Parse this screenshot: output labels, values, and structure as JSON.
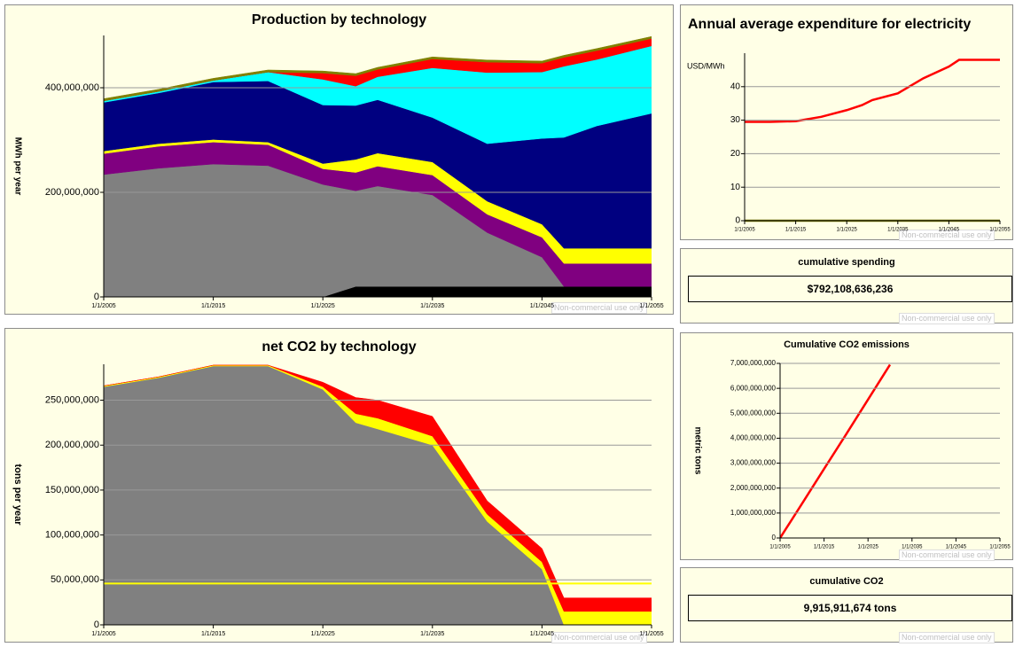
{
  "chart_data": [
    {
      "type": "area",
      "stacked": true,
      "title": "Production by technology",
      "y_label": "MWh per year",
      "x": [
        "2005-01-01",
        "2010-01-01",
        "2015-01-01",
        "2020-01-01",
        "2025-01-01",
        "2028-01-01",
        "2030-01-01",
        "2035-01-01",
        "2040-01-01",
        "2045-01-01",
        "2047-01-01",
        "2050-01-01",
        "2055-01-01"
      ],
      "xlim": [
        "2005-01-01",
        "2055-01-01"
      ],
      "xticks": [
        {
          "value": "2005-01-01",
          "label": "1/1/2005"
        },
        {
          "value": "2015-01-01",
          "label": "1/1/2015"
        },
        {
          "value": "2025-01-01",
          "label": "1/1/2025"
        },
        {
          "value": "2035-01-01",
          "label": "1/1/2035"
        },
        {
          "value": "2045-01-01",
          "label": "1/1/2045"
        },
        {
          "value": "2055-01-01",
          "label": "1/1/2055"
        }
      ],
      "ylim": [
        0,
        500000000
      ],
      "yticks": [
        0,
        {
          "value": 200000000,
          "label": "200,000,000"
        },
        {
          "value": 400000000,
          "label": "400,000,000"
        }
      ],
      "grid": true,
      "series": [
        {
          "color": "#000000",
          "values": [
            0,
            0,
            0,
            0,
            0,
            20000000,
            20000000,
            20000000,
            20000000,
            20000000,
            20000000,
            20000000,
            20000000
          ]
        },
        {
          "color": "#808080",
          "values": [
            234000000,
            246000000,
            254000000,
            251000000,
            215000000,
            183000000,
            192000000,
            175000000,
            103000000,
            56000000,
            0,
            0,
            0
          ]
        },
        {
          "color": "#800080",
          "values": [
            40000000,
            42000000,
            42000000,
            40000000,
            30000000,
            35000000,
            38000000,
            38000000,
            35000000,
            38000000,
            44000000,
            44000000,
            44000000
          ]
        },
        {
          "color": "#ffff00",
          "values": [
            5000000,
            5000000,
            5000000,
            5000000,
            10000000,
            25000000,
            25000000,
            25000000,
            25000000,
            25000000,
            29000000,
            29000000,
            29000000
          ]
        },
        {
          "color": "#000080",
          "values": [
            93000000,
            97000000,
            110000000,
            117000000,
            112000000,
            103000000,
            102000000,
            85000000,
            110000000,
            164000000,
            212000000,
            234000000,
            258000000
          ]
        },
        {
          "color": "#00ffff",
          "values": [
            3000000,
            3000000,
            3000000,
            17000000,
            49000000,
            37000000,
            44000000,
            95000000,
            136000000,
            127000000,
            136000000,
            127000000,
            129000000
          ]
        },
        {
          "color": "#ff0000",
          "values": [
            0,
            0,
            0,
            0,
            12000000,
            20000000,
            14000000,
            17000000,
            20000000,
            17000000,
            17000000,
            17000000,
            14000000
          ]
        },
        {
          "color": "#808000",
          "values": [
            4000000,
            4000000,
            4000000,
            4000000,
            4000000,
            4000000,
            4000000,
            4000000,
            4000000,
            4000000,
            4000000,
            4000000,
            4000000
          ]
        }
      ]
    },
    {
      "type": "area",
      "stacked": true,
      "title": "net CO2 by technology",
      "y_label": "tons per year",
      "x": [
        "2005-01-01",
        "2010-01-01",
        "2015-01-01",
        "2020-01-01",
        "2025-01-01",
        "2028-01-01",
        "2030-01-01",
        "2035-01-01",
        "2040-01-01",
        "2045-01-01",
        "2047-01-01",
        "2050-01-01",
        "2055-01-01"
      ],
      "xlim": [
        "2005-01-01",
        "2055-01-01"
      ],
      "xticks": [
        {
          "value": "2005-01-01",
          "label": "1/1/2005"
        },
        {
          "value": "2015-01-01",
          "label": "1/1/2015"
        },
        {
          "value": "2025-01-01",
          "label": "1/1/2025"
        },
        {
          "value": "2035-01-01",
          "label": "1/1/2035"
        },
        {
          "value": "2045-01-01",
          "label": "1/1/2045"
        },
        {
          "value": "2055-01-01",
          "label": "1/1/2055"
        }
      ],
      "ylim": [
        0,
        290000000
      ],
      "yticks": [
        0,
        {
          "value": 50000000,
          "label": "50,000,000"
        },
        {
          "value": 100000000,
          "label": "100,000,000"
        },
        {
          "value": 150000000,
          "label": "150,000,000"
        },
        {
          "value": 200000000,
          "label": "200,000,000"
        },
        {
          "value": 250000000,
          "label": "250,000,000"
        }
      ],
      "grid": true,
      "hline": 46000000,
      "hline_color": "#ffff00",
      "series": [
        {
          "color": "#808080",
          "values": [
            265000000,
            275000000,
            288000000,
            288000000,
            262000000,
            225000000,
            218000000,
            200000000,
            115000000,
            62000000,
            0,
            0,
            0
          ]
        },
        {
          "color": "#ffff00",
          "values": [
            1000000,
            1000000,
            1000000,
            1000000,
            3000000,
            10000000,
            12000000,
            10000000,
            8000000,
            8000000,
            15000000,
            15000000,
            15000000
          ]
        },
        {
          "color": "#ff0000",
          "values": [
            0,
            0,
            0,
            0,
            5000000,
            18000000,
            20000000,
            22000000,
            15000000,
            15000000,
            15000000,
            15000000,
            15000000
          ]
        }
      ]
    },
    {
      "type": "line",
      "title": "Annual average expenditure for electricity",
      "y_label": "USD/MWh",
      "x": [
        "2005-01-01",
        "2010-01-01",
        "2015-01-01",
        "2020-01-01",
        "2025-01-01",
        "2028-01-01",
        "2030-01-01",
        "2035-01-01",
        "2040-01-01",
        "2045-01-01",
        "2047-01-01",
        "2050-01-01",
        "2055-01-01"
      ],
      "xlim": [
        "2005-01-01",
        "2055-01-01"
      ],
      "xticks": [
        {
          "value": "2005-01-01",
          "label": "1/1/2005"
        },
        {
          "value": "2015-01-01",
          "label": "1/1/2015"
        },
        {
          "value": "2025-01-01",
          "label": "1/1/2025"
        },
        {
          "value": "2035-01-01",
          "label": "1/1/2035"
        },
        {
          "value": "2045-01-01",
          "label": "1/1/2045"
        },
        {
          "value": "2055-01-01",
          "label": "1/1/2055"
        }
      ],
      "ylim": [
        0,
        50
      ],
      "yticks": [
        0,
        10,
        20,
        30,
        40
      ],
      "grid": true,
      "series": [
        {
          "color": "#ff0000",
          "values": [
            29.5,
            29.5,
            29.7,
            31,
            33,
            34.5,
            36,
            38,
            42.5,
            46,
            48,
            48,
            48
          ]
        },
        {
          "color": "#808000",
          "values": [
            0,
            0,
            0,
            0,
            0,
            0,
            0,
            0,
            0,
            0,
            0,
            0,
            0
          ]
        }
      ]
    },
    {
      "type": "line",
      "title": "Cumulative CO2 emissions",
      "y_label": "metric tons",
      "x": [
        "2005-01-01",
        "2010-01-01",
        "2015-01-01",
        "2020-01-01",
        "2025-01-01",
        "2030-01-01"
      ],
      "xlim": [
        "2005-01-01",
        "2055-01-01"
      ],
      "xticks": [
        {
          "value": "2005-01-01",
          "label": "1/1/2005"
        },
        {
          "value": "2015-01-01",
          "label": "1/1/2015"
        },
        {
          "value": "2025-01-01",
          "label": "1/1/2025"
        },
        {
          "value": "2035-01-01",
          "label": "1/1/2035"
        },
        {
          "value": "2045-01-01",
          "label": "1/1/2045"
        },
        {
          "value": "2055-01-01",
          "label": "1/1/2055"
        }
      ],
      "ylim": [
        0,
        7000000000
      ],
      "yticks": [
        0,
        {
          "value": 1000000000,
          "label": "1,000,000,000"
        },
        {
          "value": 2000000000,
          "label": "2,000,000,000"
        },
        {
          "value": 3000000000,
          "label": "3,000,000,000"
        },
        {
          "value": 4000000000,
          "label": "4,000,000,000"
        },
        {
          "value": 5000000000,
          "label": "5,000,000,000"
        },
        {
          "value": 6000000000,
          "label": "6,000,000,000"
        },
        {
          "value": 7000000000,
          "label": "7,000,000,000"
        }
      ],
      "grid": true,
      "series": [
        {
          "color": "#ff0000",
          "values": [
            0,
            1380000000,
            2770000000,
            4150000000,
            5550000000,
            6950000000
          ]
        }
      ]
    }
  ],
  "kpis": [
    {
      "title": "cumulative spending",
      "value": "$792,108,636,236"
    },
    {
      "title": "cumulative CO2",
      "value": "9,915,911,674 tons"
    }
  ],
  "watermark": "Non-commercial use only"
}
